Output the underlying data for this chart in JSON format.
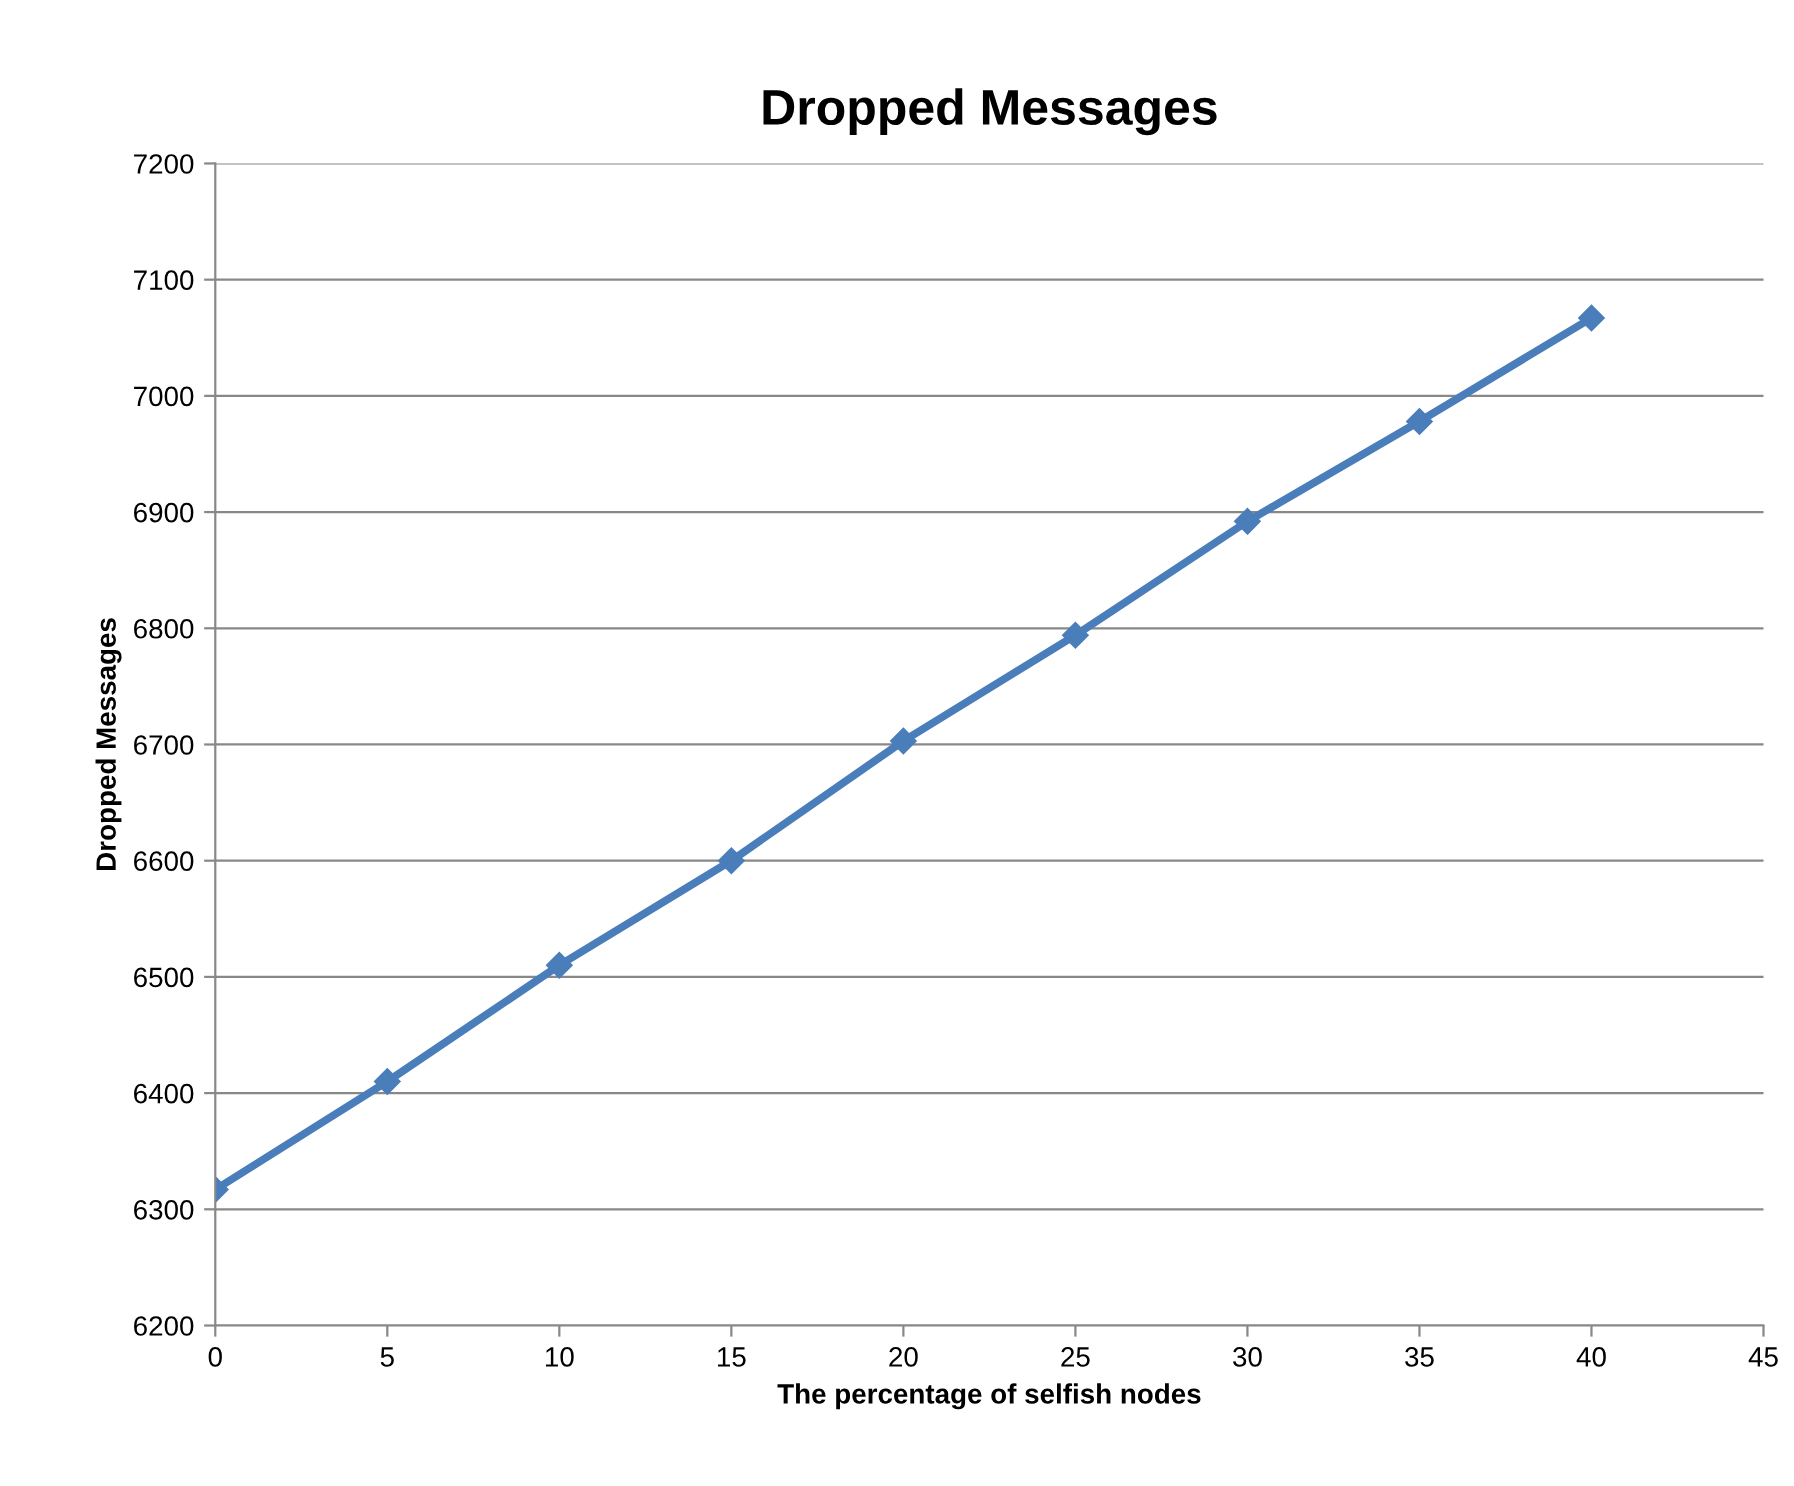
{
  "chart_data": {
    "type": "line",
    "title": "Dropped Messages",
    "xlabel": "The percentage of selfish nodes",
    "ylabel": "Dropped Messages",
    "x": [
      0,
      5,
      10,
      15,
      20,
      25,
      30,
      35,
      40
    ],
    "series": [
      {
        "color": "#4a7ebb",
        "values": [
          6317,
          6410,
          6510,
          6600,
          6703,
          6794,
          6892,
          6978,
          7067
        ]
      }
    ],
    "xlim": [
      0,
      45
    ],
    "xticks": [
      0,
      5,
      10,
      15,
      20,
      25,
      30,
      35,
      40,
      45
    ],
    "ylim": [
      6200,
      7200
    ],
    "yticks": [
      6200,
      6300,
      6400,
      6500,
      6600,
      6700,
      6800,
      6900,
      7000,
      7100,
      7200
    ],
    "grid": "y",
    "marker": "diamond",
    "line_style": "solid",
    "legend": false
  }
}
